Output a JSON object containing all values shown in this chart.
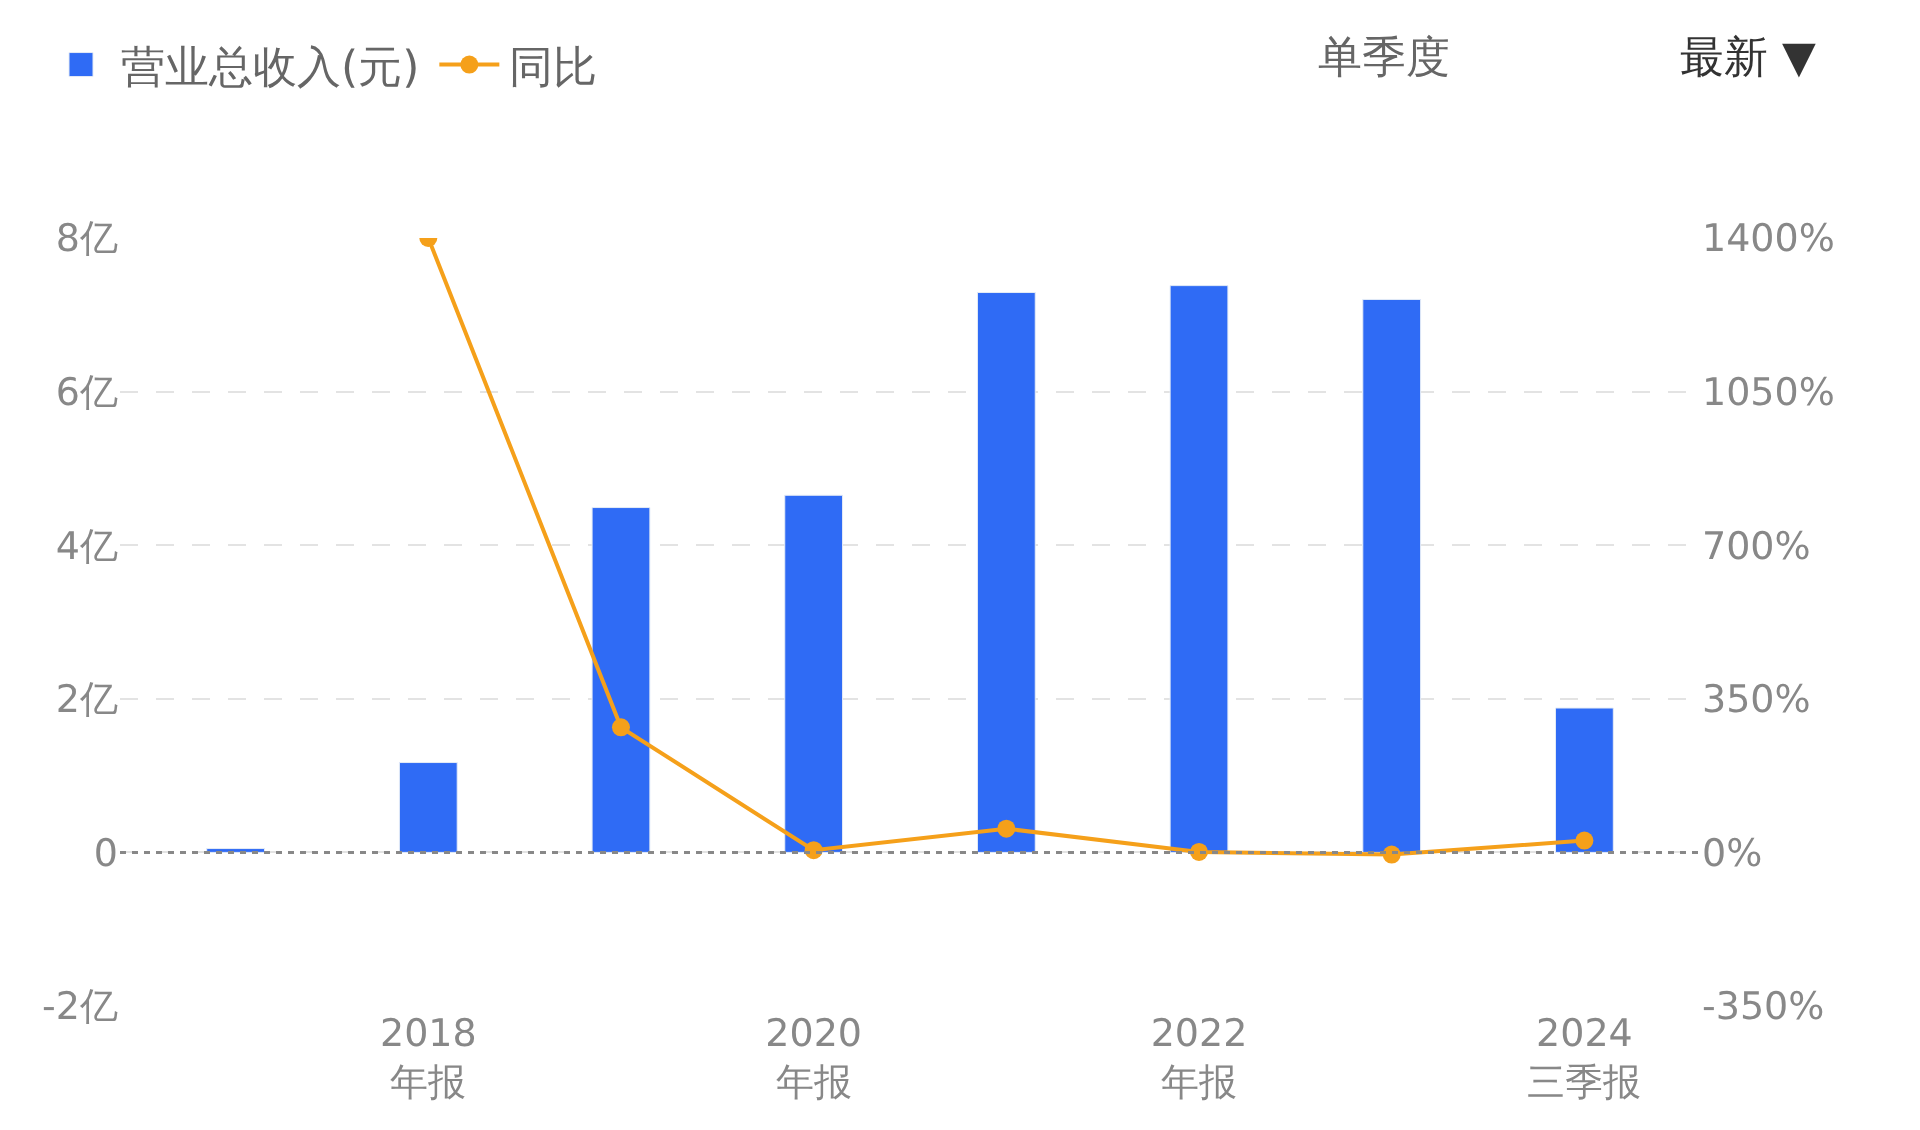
{
  "chart_data": {
    "type": "bar",
    "categories": [
      null,
      "2018\n年报",
      null,
      "2020\n年报",
      null,
      "2022\n年报",
      null,
      "2024\n三季报"
    ],
    "series": [
      {
        "name": "营业总收入(元)",
        "color": "#2f6bf5",
        "values": [
          0.05,
          1.17,
          4.49,
          4.65,
          7.29,
          7.38,
          7.2,
          1.88
        ]
      },
      {
        "name": "同比",
        "type": "line",
        "axis": "y2",
        "color": "#f5a01a",
        "marker": "circle",
        "values": [
          null,
          1400,
          285,
          5,
          54,
          1,
          -5,
          27
        ]
      }
    ],
    "ylim": [
      -2,
      8
    ],
    "yticks": [
      {
        "value": -2,
        "label": "-2亿"
      },
      0,
      {
        "value": 2,
        "label": "2亿"
      },
      {
        "value": 4,
        "label": "4亿"
      },
      {
        "value": 6,
        "label": "6亿"
      },
      {
        "value": 8,
        "label": "8亿"
      }
    ],
    "y2lim": [
      -350,
      1400
    ],
    "y2ticks": [
      {
        "value": -350,
        "label": "-350%"
      },
      {
        "value": 0,
        "label": "0%"
      },
      {
        "value": 350,
        "label": "350%"
      },
      {
        "value": 700,
        "label": "700%"
      },
      {
        "value": 1050,
        "label": "1050%"
      },
      {
        "value": 1400,
        "label": "1400%"
      }
    ],
    "ref_lines": [
      {
        "axis": "y",
        "value": 0,
        "color": "#888888",
        "line_style": "dotted"
      }
    ],
    "grid": "y",
    "legend": "top left",
    "annotations": [
      "单季度",
      "最新 ▼"
    ]
  }
}
